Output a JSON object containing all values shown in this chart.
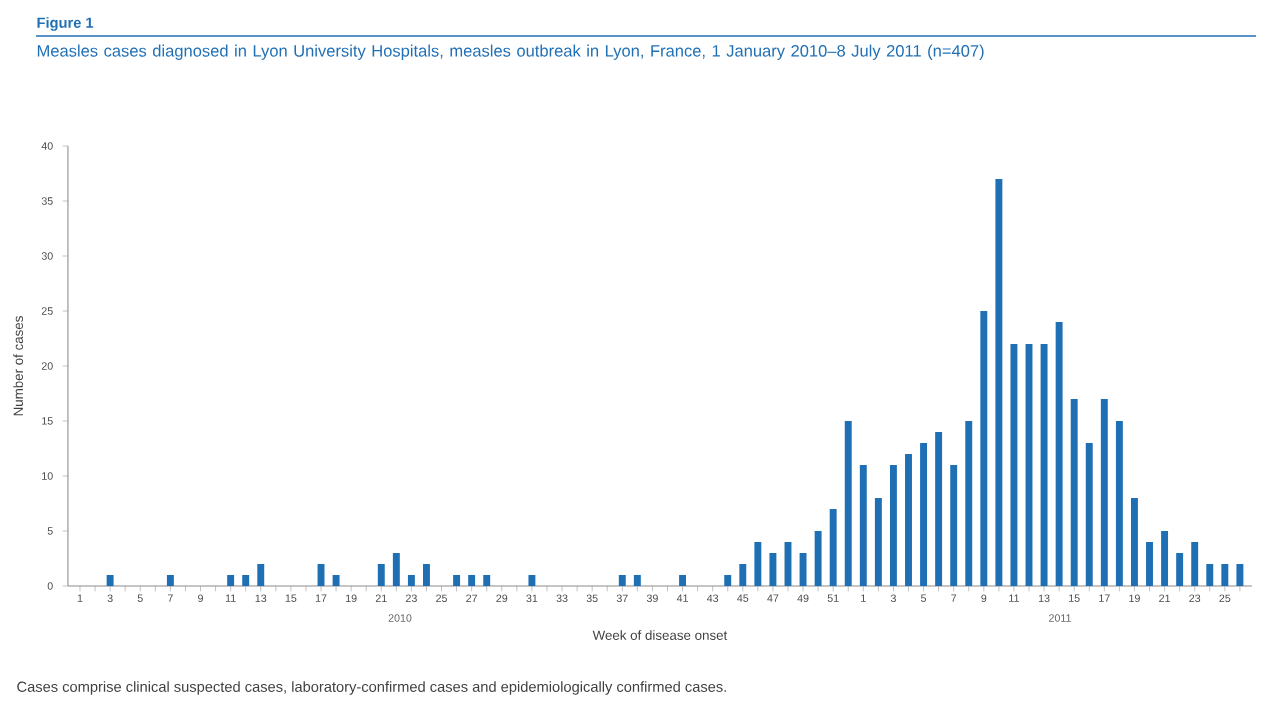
{
  "chart_data": {
    "type": "bar",
    "title": "Figure 1",
    "subtitle": "Measles cases diagnosed in Lyon University Hospitals, measles outbreak in Lyon, France, 1 January 2010–8 July 2011 (n=407)",
    "xlabel": "Week of disease onset",
    "ylabel": "Number of cases",
    "categories": [
      "1",
      null,
      "3",
      null,
      "5",
      null,
      "7",
      null,
      "9",
      null,
      "11",
      null,
      "13",
      null,
      "15",
      null,
      "17",
      null,
      "19",
      null,
      "21",
      null,
      "23",
      null,
      "25",
      null,
      "27",
      null,
      "29",
      null,
      "31",
      null,
      "33",
      null,
      "35",
      null,
      "37",
      null,
      "39",
      null,
      "41",
      null,
      "43",
      null,
      "45",
      null,
      "47",
      null,
      "49",
      null,
      "51",
      null,
      "1",
      null,
      "3",
      null,
      "5",
      null,
      "7",
      null,
      "9",
      null,
      "11",
      null,
      "13",
      null,
      "15",
      null,
      "17",
      null,
      "19",
      null,
      "21",
      null,
      "23",
      null,
      "25",
      null
    ],
    "values": [
      0,
      0,
      1,
      0,
      0,
      0,
      1,
      0,
      0,
      0,
      1,
      1,
      2,
      0,
      0,
      0,
      2,
      1,
      0,
      0,
      2,
      3,
      1,
      2,
      0,
      1,
      1,
      1,
      0,
      0,
      1,
      0,
      0,
      0,
      0,
      0,
      1,
      1,
      0,
      0,
      1,
      0,
      0,
      1,
      2,
      4,
      3,
      4,
      3,
      5,
      7,
      15,
      11,
      8,
      11,
      12,
      13,
      14,
      11,
      15,
      25,
      37,
      22,
      22,
      22,
      24,
      17,
      13,
      17,
      15,
      8,
      4,
      5,
      3,
      4,
      2,
      2,
      2
    ],
    "color": "#1f6fb5",
    "ylim": [
      0,
      40
    ],
    "yticks": [
      0,
      5,
      10,
      15,
      20,
      25,
      30,
      35,
      40
    ],
    "annotations": [
      "2010",
      "2011",
      "Cases comprise clinical suspected cases, laboratory-confirmed cases and epidemiologically confirmed cases."
    ]
  }
}
